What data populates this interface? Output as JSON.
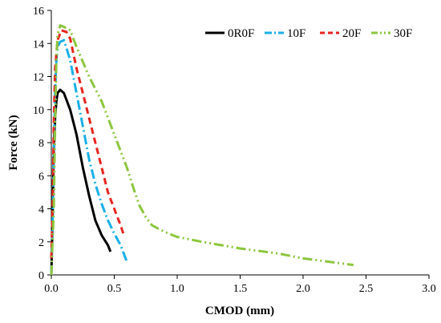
{
  "chart_data": {
    "type": "line",
    "xlabel": "CMOD (mm)",
    "ylabel": "Force (kN)",
    "xlim": [
      0,
      3.0
    ],
    "ylim": [
      0,
      16
    ],
    "xticks": [
      "0.0",
      "0.5",
      "1.0",
      "1.5",
      "2.0",
      "2.5",
      "3.0"
    ],
    "yticks": [
      "0",
      "2",
      "4",
      "6",
      "8",
      "10",
      "12",
      "14",
      "16"
    ],
    "grid": false,
    "legend_position": "top-right",
    "series": [
      {
        "name": "0R0F",
        "color": "#000000",
        "dash": "solid",
        "points": [
          [
            0.0,
            0.0
          ],
          [
            0.01,
            3.5
          ],
          [
            0.02,
            7.5
          ],
          [
            0.03,
            9.5
          ],
          [
            0.04,
            10.5
          ],
          [
            0.05,
            11.0
          ],
          [
            0.07,
            11.2
          ],
          [
            0.1,
            11.0
          ],
          [
            0.15,
            10.0
          ],
          [
            0.2,
            8.5
          ],
          [
            0.25,
            6.5
          ],
          [
            0.3,
            4.8
          ],
          [
            0.35,
            3.3
          ],
          [
            0.4,
            2.4
          ],
          [
            0.45,
            1.8
          ],
          [
            0.47,
            1.4
          ]
        ]
      },
      {
        "name": "10F",
        "color": "#1AAFE6",
        "dash": "dashdot",
        "points": [
          [
            0.0,
            0.0
          ],
          [
            0.01,
            3.0
          ],
          [
            0.02,
            7.5
          ],
          [
            0.03,
            11.0
          ],
          [
            0.04,
            13.0
          ],
          [
            0.05,
            13.8
          ],
          [
            0.07,
            14.1
          ],
          [
            0.1,
            14.2
          ],
          [
            0.15,
            13.0
          ],
          [
            0.2,
            11.0
          ],
          [
            0.25,
            9.0
          ],
          [
            0.3,
            7.0
          ],
          [
            0.35,
            5.5
          ],
          [
            0.4,
            4.3
          ],
          [
            0.45,
            3.3
          ],
          [
            0.5,
            2.5
          ],
          [
            0.55,
            1.8
          ],
          [
            0.6,
            0.8
          ]
        ]
      },
      {
        "name": "20F",
        "color": "#E8241E",
        "dash": "dash",
        "points": [
          [
            0.0,
            1.0
          ],
          [
            0.01,
            4.0
          ],
          [
            0.02,
            9.0
          ],
          [
            0.03,
            12.5
          ],
          [
            0.05,
            14.2
          ],
          [
            0.08,
            14.8
          ],
          [
            0.12,
            14.7
          ],
          [
            0.15,
            14.3
          ],
          [
            0.2,
            12.5
          ],
          [
            0.25,
            11.0
          ],
          [
            0.3,
            9.5
          ],
          [
            0.35,
            8.0
          ],
          [
            0.4,
            6.5
          ],
          [
            0.45,
            5.0
          ],
          [
            0.5,
            4.0
          ],
          [
            0.55,
            3.0
          ],
          [
            0.58,
            2.3
          ]
        ]
      },
      {
        "name": "30F",
        "color": "#8CC63F",
        "dash": "dashdotdot",
        "points": [
          [
            0.0,
            0.0
          ],
          [
            0.02,
            4.0
          ],
          [
            0.03,
            9.0
          ],
          [
            0.04,
            13.0
          ],
          [
            0.05,
            14.5
          ],
          [
            0.07,
            15.1
          ],
          [
            0.1,
            15.0
          ],
          [
            0.15,
            14.8
          ],
          [
            0.2,
            13.8
          ],
          [
            0.3,
            12.0
          ],
          [
            0.4,
            10.5
          ],
          [
            0.5,
            8.5
          ],
          [
            0.6,
            6.5
          ],
          [
            0.65,
            5.3
          ],
          [
            0.7,
            4.2
          ],
          [
            0.75,
            3.5
          ],
          [
            0.8,
            3.0
          ],
          [
            0.9,
            2.6
          ],
          [
            1.0,
            2.3
          ],
          [
            1.2,
            2.0
          ],
          [
            1.5,
            1.6
          ],
          [
            1.8,
            1.3
          ],
          [
            2.0,
            1.0
          ],
          [
            2.2,
            0.8
          ],
          [
            2.4,
            0.6
          ]
        ]
      }
    ]
  }
}
